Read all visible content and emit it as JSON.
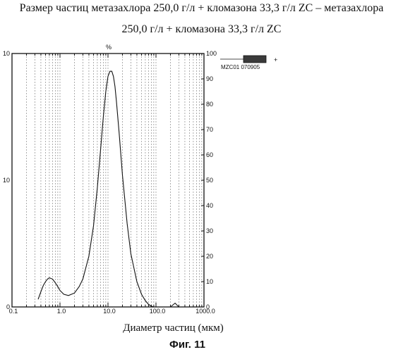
{
  "title_line1": "Размер частиц метазахлора 250,0 г/л + кломазона 33,3 г/л ZC – метазахлора",
  "title_line2": "250,0 г/л + кломазона 33,3 г/л ZC",
  "figure_caption": "Фиг. 11",
  "legend": {
    "sample": "MZC01 070905",
    "marker": "+"
  },
  "chart_data": {
    "type": "line",
    "title": "",
    "xlabel": "Диаметр частиц (мкм)",
    "ylabel_top": "%",
    "x_scale": "log",
    "xlim": [
      0.1,
      1000
    ],
    "x_ticks": [
      "0.1",
      "1.0",
      "10.0",
      "100.0",
      "1000.0"
    ],
    "y_left_lim": [
      0,
      10
    ],
    "y_left_ticks": [
      "0",
      "10",
      "10"
    ],
    "y_right_lim": [
      0,
      100
    ],
    "y_right_ticks": [
      "0",
      "10",
      "20",
      "30",
      "40",
      "50",
      "60",
      "70",
      "80",
      "90",
      "100"
    ],
    "grid": "vertical dashed",
    "series": [
      {
        "name": "MZC01 070905",
        "x": [
          0.35,
          0.4,
          0.45,
          0.5,
          0.55,
          0.6,
          0.7,
          0.8,
          0.9,
          1.0,
          1.2,
          1.5,
          2.0,
          2.5,
          3.0,
          4.0,
          5.0,
          6.0,
          7.0,
          8.0,
          9.0,
          10.0,
          11.0,
          12.0,
          13.0,
          14.0,
          15.0,
          17.0,
          20.0,
          25.0,
          30.0,
          40.0,
          50.0,
          60.0,
          70.0,
          80.0,
          90.0
        ],
        "y": [
          0.3,
          0.6,
          0.85,
          1.0,
          1.1,
          1.15,
          1.1,
          0.95,
          0.8,
          0.65,
          0.5,
          0.45,
          0.55,
          0.8,
          1.1,
          2.0,
          3.2,
          4.7,
          6.2,
          7.5,
          8.5,
          9.1,
          9.3,
          9.3,
          9.1,
          8.7,
          8.1,
          6.9,
          5.2,
          3.3,
          2.1,
          1.0,
          0.5,
          0.25,
          0.1,
          0.03,
          0.0
        ]
      }
    ],
    "secondary_series": {
      "x": [
        200,
        250,
        300
      ],
      "y": [
        0.0,
        0.15,
        0.0
      ]
    }
  }
}
